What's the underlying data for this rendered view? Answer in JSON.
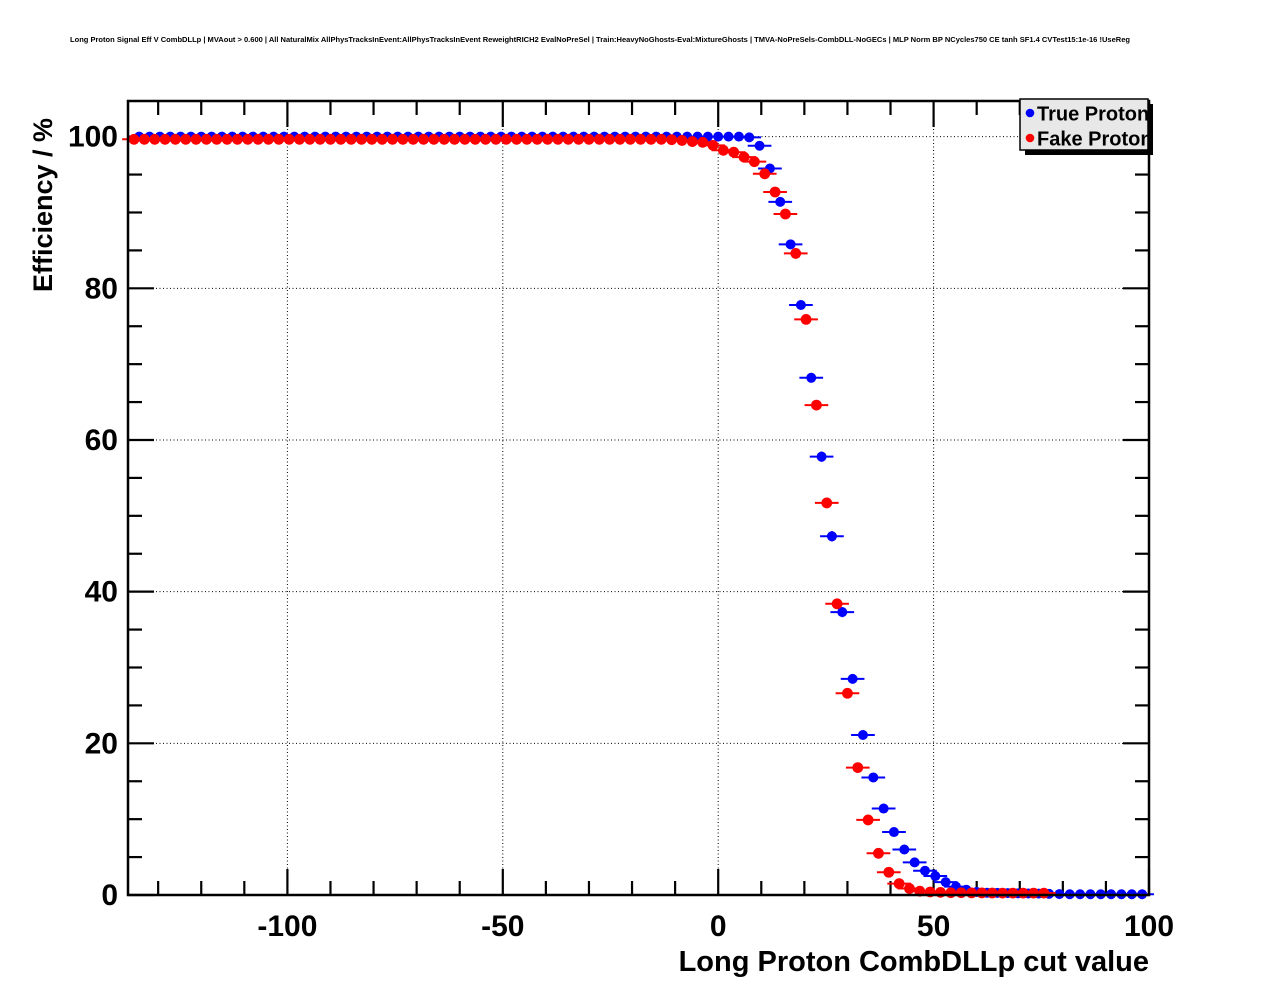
{
  "title": "Long Proton Signal Eff V CombDLLp | MVAout > 0.600 | All NaturalMix AllPhysTracksInEvent:AllPhysTracksInEvent ReweightRICH2 EvalNoPreSel | Train:HeavyNoGhosts-Eval:MixtureGhosts | TMVA-NoPreSels-CombDLL-NoGECs | MLP Norm BP NCycles750 CE tanh SF1.4 CVTest15:1e-16 !UseReg",
  "legend": {
    "position": "top-right",
    "background": "#e8e8e8",
    "entries": [
      {
        "label": "True Proton",
        "color": "#0000ff",
        "marker": "filled-circle"
      },
      {
        "label": "Fake Proton",
        "color": "#ff0000",
        "marker": "filled-circle"
      }
    ]
  },
  "colors": {
    "true_proton": "#0000ff",
    "fake_proton": "#ff0000",
    "background": "#ffffff",
    "frame": "#000000",
    "legend_bg": "#e8e8e8"
  },
  "chart_data": {
    "type": "scatter",
    "title": "Long Proton Signal Eff V CombDLLp | MVAout > 0.600 | All NaturalMix AllPhysTracksInEvent:AllPhysTracksInEvent ReweightRICH2 EvalNoPreSel | Train:HeavyNoGhosts-Eval:MixtureGhosts | TMVA-NoPreSels-CombDLL-NoGECs | MLP Norm BP NCycles750 CE tanh SF1.4 CVTest15:1e-16 !UseReg",
    "xlabel": "Long Proton CombDLLp cut value",
    "ylabel": "Efficiency / %",
    "xlim": [
      -137,
      100
    ],
    "ylim": [
      0,
      104.7
    ],
    "x_major_ticks": [
      -100,
      -50,
      0,
      50,
      100
    ],
    "x_minor_step": 10,
    "y_major_ticks": [
      0,
      20,
      40,
      60,
      80,
      100
    ],
    "y_minor_step": 5,
    "grid": "dotted-at-major-ticks",
    "legend_position": "top-right",
    "marker": "filled-circle-with-error-bars",
    "series": [
      {
        "name": "True Proton",
        "color": "#0000ff",
        "points": [
          [
            -134.4,
            100
          ],
          [
            -132,
            100
          ],
          [
            -129.6,
            100
          ],
          [
            -127.2,
            100
          ],
          [
            -124.8,
            100
          ],
          [
            -122.4,
            100
          ],
          [
            -120,
            100
          ],
          [
            -117.6,
            100
          ],
          [
            -115.2,
            100
          ],
          [
            -112.8,
            100
          ],
          [
            -110.4,
            100
          ],
          [
            -108,
            100
          ],
          [
            -105.6,
            100
          ],
          [
            -103.2,
            100
          ],
          [
            -100.8,
            100
          ],
          [
            -98.4,
            100
          ],
          [
            -96,
            100
          ],
          [
            -93.6,
            100
          ],
          [
            -91.2,
            100
          ],
          [
            -88.8,
            100
          ],
          [
            -86.4,
            100
          ],
          [
            -84,
            100
          ],
          [
            -81.6,
            100
          ],
          [
            -79.2,
            100
          ],
          [
            -76.8,
            100
          ],
          [
            -74.4,
            100
          ],
          [
            -72,
            100
          ],
          [
            -69.6,
            100
          ],
          [
            -67.2,
            100
          ],
          [
            -64.8,
            100
          ],
          [
            -62.4,
            100
          ],
          [
            -60,
            100
          ],
          [
            -57.6,
            100
          ],
          [
            -55.2,
            100
          ],
          [
            -52.8,
            100
          ],
          [
            -50.4,
            100
          ],
          [
            -48,
            100
          ],
          [
            -45.6,
            100
          ],
          [
            -43.2,
            100
          ],
          [
            -40.8,
            100
          ],
          [
            -38.4,
            100
          ],
          [
            -36,
            100
          ],
          [
            -33.6,
            100
          ],
          [
            -31.2,
            100
          ],
          [
            -28.8,
            100
          ],
          [
            -26.4,
            100
          ],
          [
            -24,
            100
          ],
          [
            -21.6,
            100
          ],
          [
            -19.2,
            100
          ],
          [
            -16.8,
            100
          ],
          [
            -14.4,
            100
          ],
          [
            -12,
            100
          ],
          [
            -9.6,
            100
          ],
          [
            -7.2,
            100
          ],
          [
            -4.8,
            100
          ],
          [
            -2.4,
            100
          ],
          [
            0,
            100
          ],
          [
            2.4,
            100
          ],
          [
            4.8,
            100
          ],
          [
            7.2,
            99.9
          ],
          [
            9.6,
            98.8
          ],
          [
            12,
            95.8
          ],
          [
            14.4,
            91.4
          ],
          [
            16.8,
            85.8
          ],
          [
            19.2,
            77.8
          ],
          [
            21.6,
            68.2
          ],
          [
            24,
            57.8
          ],
          [
            26.4,
            47.3
          ],
          [
            28.8,
            37.3
          ],
          [
            31.2,
            28.5
          ],
          [
            33.6,
            21.1
          ],
          [
            36,
            15.5
          ],
          [
            38.4,
            11.4
          ],
          [
            40.8,
            8.3
          ],
          [
            43.2,
            6
          ],
          [
            45.6,
            4.3
          ],
          [
            48,
            3.2
          ],
          [
            50.4,
            2.5
          ],
          [
            52.8,
            1.7
          ],
          [
            55.2,
            1.1
          ],
          [
            57.6,
            0.7
          ],
          [
            60,
            0.4
          ],
          [
            62.4,
            0.3
          ],
          [
            64.8,
            0.28
          ],
          [
            67.2,
            0.25
          ],
          [
            69.6,
            0.22
          ],
          [
            72,
            0.2
          ],
          [
            74.4,
            0.18
          ],
          [
            76.8,
            0.15
          ],
          [
            79.2,
            0.12
          ],
          [
            81.6,
            0.1
          ],
          [
            84,
            0.1
          ],
          [
            86.4,
            0.1
          ],
          [
            88.8,
            0.1
          ],
          [
            91.2,
            0.1
          ],
          [
            93.6,
            0.1
          ],
          [
            96,
            0.1
          ],
          [
            98.4,
            0.1
          ]
        ]
      },
      {
        "name": "Fake Proton",
        "color": "#ff0000",
        "points": [
          [
            -135.6,
            99.65
          ],
          [
            -133.2,
            99.65
          ],
          [
            -130.8,
            99.65
          ],
          [
            -128.4,
            99.65
          ],
          [
            -126,
            99.65
          ],
          [
            -123.6,
            99.65
          ],
          [
            -121.2,
            99.65
          ],
          [
            -118.8,
            99.65
          ],
          [
            -116.4,
            99.65
          ],
          [
            -114,
            99.65
          ],
          [
            -111.6,
            99.65
          ],
          [
            -109.2,
            99.65
          ],
          [
            -106.8,
            99.65
          ],
          [
            -104.4,
            99.65
          ],
          [
            -102,
            99.65
          ],
          [
            -99.6,
            99.65
          ],
          [
            -97.2,
            99.65
          ],
          [
            -94.8,
            99.65
          ],
          [
            -92.4,
            99.65
          ],
          [
            -90,
            99.65
          ],
          [
            -87.6,
            99.65
          ],
          [
            -85.2,
            99.65
          ],
          [
            -82.8,
            99.65
          ],
          [
            -80.4,
            99.65
          ],
          [
            -78,
            99.65
          ],
          [
            -75.6,
            99.65
          ],
          [
            -73.2,
            99.65
          ],
          [
            -70.8,
            99.65
          ],
          [
            -68.4,
            99.65
          ],
          [
            -66,
            99.65
          ],
          [
            -63.6,
            99.65
          ],
          [
            -61.2,
            99.65
          ],
          [
            -58.8,
            99.65
          ],
          [
            -56.4,
            99.65
          ],
          [
            -54,
            99.65
          ],
          [
            -51.6,
            99.65
          ],
          [
            -49.2,
            99.65
          ],
          [
            -46.8,
            99.65
          ],
          [
            -44.4,
            99.65
          ],
          [
            -42,
            99.65
          ],
          [
            -39.6,
            99.65
          ],
          [
            -37.2,
            99.65
          ],
          [
            -34.8,
            99.65
          ],
          [
            -32.4,
            99.65
          ],
          [
            -30,
            99.65
          ],
          [
            -27.6,
            99.65
          ],
          [
            -25.2,
            99.65
          ],
          [
            -22.8,
            99.65
          ],
          [
            -20.4,
            99.65
          ],
          [
            -18,
            99.65
          ],
          [
            -15.6,
            99.65
          ],
          [
            -13.2,
            99.65
          ],
          [
            -10.8,
            99.6
          ],
          [
            -8.4,
            99.5
          ],
          [
            -6,
            99.35
          ],
          [
            -3.6,
            99.25
          ],
          [
            -1.2,
            98.85
          ],
          [
            1.2,
            98.2
          ],
          [
            3.6,
            97.95
          ],
          [
            6,
            97.3
          ],
          [
            8.4,
            96.7
          ],
          [
            10.8,
            95.1
          ],
          [
            13.2,
            92.7
          ],
          [
            15.6,
            89.8
          ],
          [
            18,
            84.6
          ],
          [
            20.4,
            75.9
          ],
          [
            22.8,
            64.6
          ],
          [
            25.2,
            51.7
          ],
          [
            27.6,
            38.4
          ],
          [
            30,
            26.6
          ],
          [
            32.4,
            16.8
          ],
          [
            34.8,
            9.9
          ],
          [
            37.2,
            5.5
          ],
          [
            39.6,
            3
          ],
          [
            42,
            1.5
          ],
          [
            44.4,
            0.85
          ],
          [
            46.8,
            0.5
          ],
          [
            49.2,
            0.4
          ],
          [
            51.6,
            0.35
          ],
          [
            54,
            0.3
          ],
          [
            56.4,
            0.3
          ],
          [
            58.8,
            0.28
          ],
          [
            61.2,
            0.28
          ],
          [
            63.6,
            0.26
          ],
          [
            66,
            0.25
          ],
          [
            68.4,
            0.25
          ],
          [
            70.8,
            0.25
          ],
          [
            73.2,
            0.25
          ],
          [
            75.6,
            0.25
          ]
        ]
      }
    ]
  }
}
